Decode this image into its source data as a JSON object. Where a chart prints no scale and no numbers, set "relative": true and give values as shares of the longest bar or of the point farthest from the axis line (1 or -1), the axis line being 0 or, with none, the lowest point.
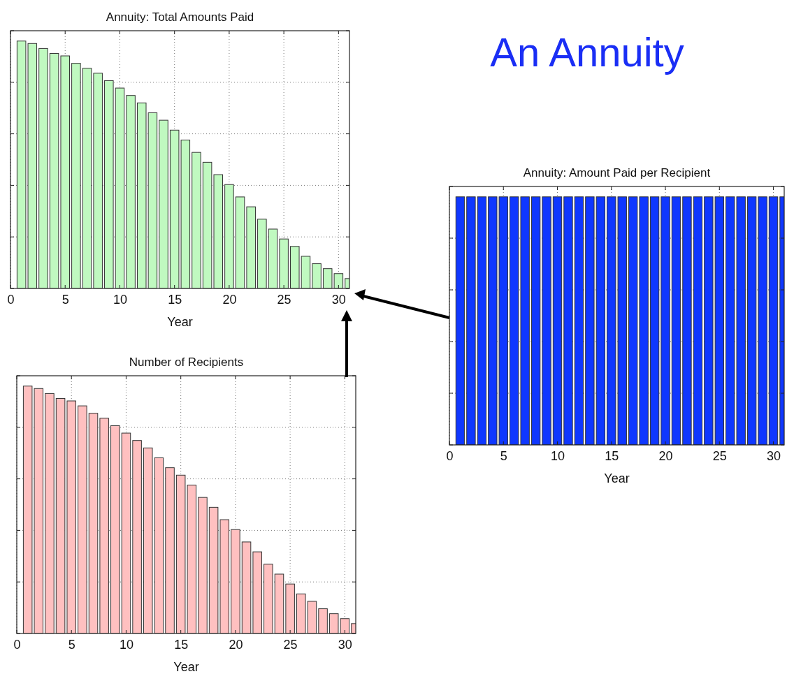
{
  "chart_data": [
    {
      "type": "bar",
      "title": "Annuity: Total Amounts Paid",
      "xlabel": "Year",
      "annotations": [
        "An Annuity"
      ],
      "relative": true,
      "grid": true,
      "color": "#c0f9c0",
      "x": [
        1,
        2,
        3,
        4,
        5,
        6,
        7,
        8,
        9,
        10,
        11,
        12,
        13,
        14,
        15,
        16,
        17,
        18,
        19,
        20,
        21,
        22,
        23,
        24,
        25,
        26,
        27,
        28,
        29,
        30,
        31
      ],
      "values": [
        1,
        0.99,
        0.97,
        0.95,
        0.94,
        0.91,
        0.89,
        0.87,
        0.84,
        0.81,
        0.78,
        0.75,
        0.71,
        0.68,
        0.64,
        0.6,
        0.55,
        0.51,
        0.46,
        0.42,
        0.37,
        0.33,
        0.28,
        0.24,
        0.2,
        0.17,
        0.13,
        0.1,
        0.08,
        0.06,
        0.04
      ],
      "xlim": [
        0,
        31
      ],
      "xticks": [
        0,
        5,
        10,
        15,
        20,
        25,
        30
      ]
    },
    {
      "type": "bar",
      "title": "Annuity: Amount Paid per Recipient",
      "xlabel": "Year",
      "relative": true,
      "grid": true,
      "color": "#0f37ff",
      "x": [
        1,
        2,
        3,
        4,
        5,
        6,
        7,
        8,
        9,
        10,
        11,
        12,
        13,
        14,
        15,
        16,
        17,
        18,
        19,
        20,
        21,
        22,
        23,
        24,
        25,
        26,
        27,
        28,
        29,
        30,
        31
      ],
      "values": [
        1,
        1,
        1,
        1,
        1,
        1,
        1,
        1,
        1,
        1,
        1,
        1,
        1,
        1,
        1,
        1,
        1,
        1,
        1,
        1,
        1,
        1,
        1,
        1,
        1,
        1,
        1,
        1,
        1,
        1,
        1
      ],
      "xlim": [
        0,
        31
      ],
      "xticks": [
        0,
        5,
        10,
        15,
        20,
        25,
        30
      ]
    },
    {
      "type": "bar",
      "title": "Number of Recipients",
      "xlabel": "Year",
      "relative": true,
      "grid": true,
      "color": "#ffc0c0",
      "x": [
        1,
        2,
        3,
        4,
        5,
        6,
        7,
        8,
        9,
        10,
        11,
        12,
        13,
        14,
        15,
        16,
        17,
        18,
        19,
        20,
        21,
        22,
        23,
        24,
        25,
        26,
        27,
        28,
        29,
        30,
        31
      ],
      "values": [
        1,
        0.99,
        0.97,
        0.95,
        0.94,
        0.92,
        0.89,
        0.87,
        0.84,
        0.81,
        0.78,
        0.75,
        0.71,
        0.67,
        0.64,
        0.6,
        0.55,
        0.51,
        0.46,
        0.42,
        0.37,
        0.33,
        0.28,
        0.24,
        0.2,
        0.16,
        0.13,
        0.1,
        0.08,
        0.06,
        0.04
      ],
      "xlim": [
        0,
        31
      ],
      "xticks": [
        0,
        5,
        10,
        15,
        20,
        25,
        30
      ]
    }
  ]
}
